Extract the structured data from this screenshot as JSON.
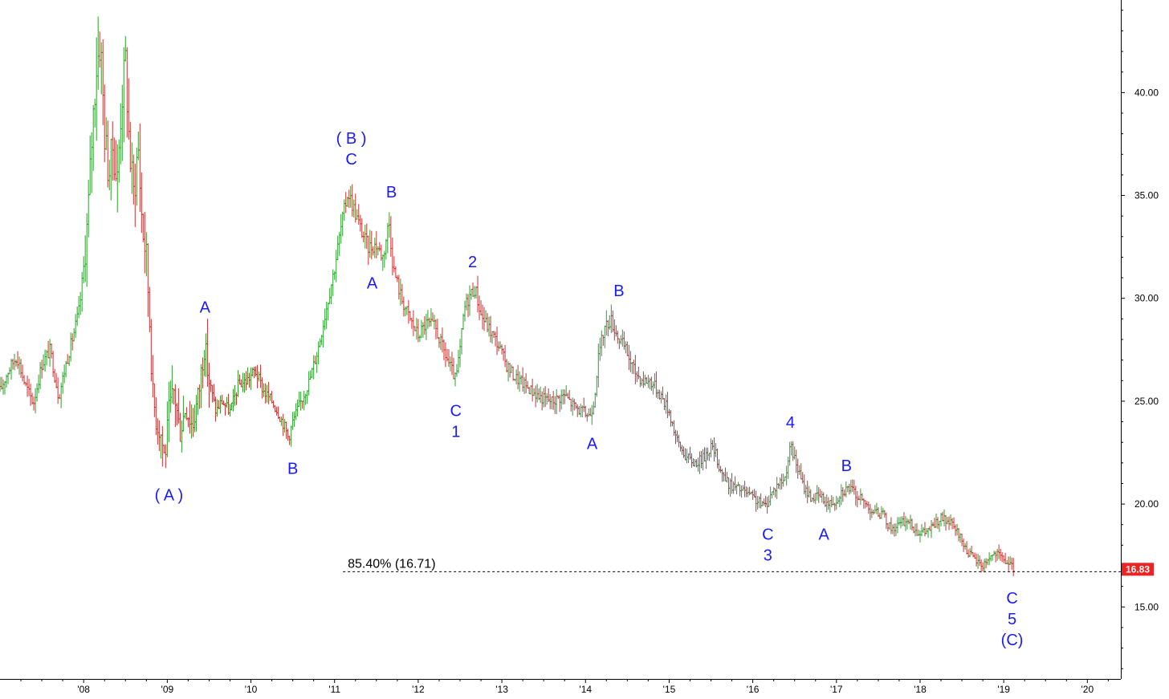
{
  "chart_data": {
    "type": "bar",
    "subtype": "ohlc-price-bars",
    "title": "",
    "xlabel": "",
    "ylabel": "",
    "ylim": [
      11.5,
      44.5
    ],
    "xlim": [
      2007.0,
      2020.4
    ],
    "y_ticks": [
      15,
      20,
      25,
      30,
      35,
      40
    ],
    "y_tick_labels": [
      "15.00",
      "20.00",
      "25.00",
      "30.00",
      "35.00",
      "40.00"
    ],
    "x_ticks": [
      2008,
      2009,
      2010,
      2011,
      2012,
      2013,
      2014,
      2015,
      2016,
      2017,
      2018,
      2019,
      2020
    ],
    "x_tick_labels": [
      "'08",
      "'09",
      "'10",
      "'11",
      "'12",
      "'13",
      "'14",
      "'15",
      "'16",
      "'17",
      "'18",
      "'19",
      "'20"
    ],
    "grid": false,
    "colors": {
      "up": "#2e9e2e",
      "down": "#c83232",
      "wave_label": "#1a1aff",
      "price_tag": "#ee2222",
      "axis": "#000000"
    },
    "price_path": [
      [
        2007.0,
        25.5
      ],
      [
        2007.1,
        26.5
      ],
      [
        2007.2,
        27.2
      ],
      [
        2007.3,
        25.8
      ],
      [
        2007.4,
        24.9
      ],
      [
        2007.5,
        26.8
      ],
      [
        2007.6,
        27.5
      ],
      [
        2007.7,
        25.2
      ],
      [
        2007.8,
        27.0
      ],
      [
        2007.9,
        28.6
      ],
      [
        2007.95,
        29.5
      ],
      [
        2008.0,
        31.5
      ],
      [
        2008.05,
        34.0
      ],
      [
        2008.1,
        38.0
      ],
      [
        2008.15,
        41.2
      ],
      [
        2008.2,
        42.6
      ],
      [
        2008.25,
        38.0
      ],
      [
        2008.3,
        36.0
      ],
      [
        2008.35,
        37.5
      ],
      [
        2008.4,
        35.5
      ],
      [
        2008.45,
        39.5
      ],
      [
        2008.5,
        41.5
      ],
      [
        2008.55,
        37.0
      ],
      [
        2008.6,
        35.0
      ],
      [
        2008.65,
        37.5
      ],
      [
        2008.7,
        33.5
      ],
      [
        2008.75,
        32.0
      ],
      [
        2008.8,
        28.0
      ],
      [
        2008.82,
        25.5
      ],
      [
        2008.87,
        24.0
      ],
      [
        2008.92,
        23.5
      ],
      [
        2008.97,
        22.2
      ],
      [
        2009.02,
        24.5
      ],
      [
        2009.08,
        25.5
      ],
      [
        2009.15,
        23.5
      ],
      [
        2009.22,
        24.8
      ],
      [
        2009.3,
        23.8
      ],
      [
        2009.38,
        25.5
      ],
      [
        2009.44,
        27.8
      ],
      [
        2009.5,
        26.0
      ],
      [
        2009.58,
        24.5
      ],
      [
        2009.65,
        25.0
      ],
      [
        2009.75,
        24.5
      ],
      [
        2009.85,
        25.8
      ],
      [
        2009.95,
        26.0
      ],
      [
        2010.05,
        26.5
      ],
      [
        2010.15,
        25.5
      ],
      [
        2010.25,
        25.0
      ],
      [
        2010.32,
        24.5
      ],
      [
        2010.4,
        23.8
      ],
      [
        2010.45,
        23.2
      ],
      [
        2010.5,
        24.0
      ],
      [
        2010.6,
        25.0
      ],
      [
        2010.7,
        26.0
      ],
      [
        2010.8,
        27.5
      ],
      [
        2010.9,
        29.5
      ],
      [
        2011.0,
        31.5
      ],
      [
        2011.08,
        33.5
      ],
      [
        2011.16,
        35.2
      ],
      [
        2011.22,
        34.5
      ],
      [
        2011.3,
        33.5
      ],
      [
        2011.4,
        32.5
      ],
      [
        2011.5,
        32.6
      ],
      [
        2011.58,
        32.0
      ],
      [
        2011.62,
        33.0
      ],
      [
        2011.65,
        33.8
      ],
      [
        2011.7,
        31.5
      ],
      [
        2011.8,
        30.0
      ],
      [
        2011.9,
        29.0
      ],
      [
        2012.0,
        28.2
      ],
      [
        2012.1,
        28.8
      ],
      [
        2012.2,
        28.6
      ],
      [
        2012.3,
        27.5
      ],
      [
        2012.4,
        26.5
      ],
      [
        2012.45,
        26.0
      ],
      [
        2012.5,
        27.5
      ],
      [
        2012.55,
        29.5
      ],
      [
        2012.62,
        30.2
      ],
      [
        2012.68,
        30.5
      ],
      [
        2012.75,
        29.2
      ],
      [
        2012.85,
        28.5
      ],
      [
        2012.95,
        27.8
      ],
      [
        2013.05,
        26.8
      ],
      [
        2013.15,
        26.2
      ],
      [
        2013.3,
        25.7
      ],
      [
        2013.45,
        25.2
      ],
      [
        2013.6,
        25.0
      ],
      [
        2013.75,
        25.3
      ],
      [
        2013.85,
        24.8
      ],
      [
        2013.95,
        24.5
      ],
      [
        2014.05,
        24.3
      ],
      [
        2014.1,
        25.0
      ],
      [
        2014.15,
        27.0
      ],
      [
        2014.22,
        28.5
      ],
      [
        2014.3,
        29.0
      ],
      [
        2014.38,
        28.2
      ],
      [
        2014.48,
        27.5
      ],
      [
        2014.58,
        26.5
      ],
      [
        2014.68,
        26.0
      ],
      [
        2014.78,
        26.0
      ],
      [
        2014.9,
        25.3
      ],
      [
        2015.0,
        24.5
      ],
      [
        2015.1,
        23.0
      ],
      [
        2015.2,
        22.3
      ],
      [
        2015.3,
        22.0
      ],
      [
        2015.4,
        22.2
      ],
      [
        2015.5,
        22.8
      ],
      [
        2015.55,
        22.5
      ],
      [
        2015.6,
        21.8
      ],
      [
        2015.7,
        21.0
      ],
      [
        2015.8,
        20.8
      ],
      [
        2015.9,
        20.6
      ],
      [
        2016.0,
        20.3
      ],
      [
        2016.1,
        20.0
      ],
      [
        2016.15,
        19.9
      ],
      [
        2016.22,
        20.5
      ],
      [
        2016.3,
        21.0
      ],
      [
        2016.38,
        21.2
      ],
      [
        2016.45,
        22.8
      ],
      [
        2016.5,
        22.2
      ],
      [
        2016.6,
        20.9
      ],
      [
        2016.7,
        20.3
      ],
      [
        2016.8,
        20.4
      ],
      [
        2016.9,
        20.0
      ],
      [
        2017.0,
        20.2
      ],
      [
        2017.05,
        20.6
      ],
      [
        2017.15,
        20.8
      ],
      [
        2017.25,
        20.4
      ],
      [
        2017.35,
        20.0
      ],
      [
        2017.45,
        19.6
      ],
      [
        2017.55,
        19.5
      ],
      [
        2017.65,
        18.8
      ],
      [
        2017.75,
        19.0
      ],
      [
        2017.85,
        19.2
      ],
      [
        2017.95,
        18.7
      ],
      [
        2018.05,
        18.6
      ],
      [
        2018.15,
        18.9
      ],
      [
        2018.25,
        19.3
      ],
      [
        2018.35,
        19.1
      ],
      [
        2018.45,
        18.6
      ],
      [
        2018.55,
        17.8
      ],
      [
        2018.65,
        17.3
      ],
      [
        2018.75,
        17.0
      ],
      [
        2018.82,
        17.4
      ],
      [
        2018.9,
        17.6
      ],
      [
        2019.0,
        17.3
      ],
      [
        2019.08,
        17.0
      ],
      [
        2019.12,
        16.83
      ]
    ],
    "annotations": [
      {
        "text": "( A )",
        "x": 2009.02,
        "y": 21.5,
        "pos": "below"
      },
      {
        "text": "A",
        "x": 2009.45,
        "y": 28.6,
        "pos": "above"
      },
      {
        "text": "B",
        "x": 2010.5,
        "y": 22.8,
        "pos": "below"
      },
      {
        "text": "( B )",
        "x": 2011.2,
        "y": 35.8,
        "pos": "above-2"
      },
      {
        "text": "C",
        "x": 2011.2,
        "y": 35.8,
        "pos": "above"
      },
      {
        "text": "A",
        "x": 2011.45,
        "y": 31.8,
        "pos": "below"
      },
      {
        "text": "B",
        "x": 2011.68,
        "y": 34.2,
        "pos": "above"
      },
      {
        "text": "C",
        "x": 2012.45,
        "y": 25.6,
        "pos": "below"
      },
      {
        "text": "1",
        "x": 2012.45,
        "y": 25.6,
        "pos": "below-2"
      },
      {
        "text": "2",
        "x": 2012.65,
        "y": 30.8,
        "pos": "above"
      },
      {
        "text": "A",
        "x": 2014.08,
        "y": 24.0,
        "pos": "below"
      },
      {
        "text": "B",
        "x": 2014.4,
        "y": 29.4,
        "pos": "above"
      },
      {
        "text": "4",
        "x": 2016.45,
        "y": 23.0,
        "pos": "above"
      },
      {
        "text": "C",
        "x": 2016.18,
        "y": 19.6,
        "pos": "below"
      },
      {
        "text": "3",
        "x": 2016.18,
        "y": 19.6,
        "pos": "below-2"
      },
      {
        "text": "B",
        "x": 2017.12,
        "y": 20.9,
        "pos": "above"
      },
      {
        "text": "A",
        "x": 2016.85,
        "y": 19.6,
        "pos": "below"
      },
      {
        "text": "C",
        "x": 2019.1,
        "y": 16.5,
        "pos": "below"
      },
      {
        "text": "5",
        "x": 2019.1,
        "y": 16.5,
        "pos": "below-2"
      },
      {
        "text": "(C)",
        "x": 2019.1,
        "y": 16.5,
        "pos": "below-3"
      }
    ],
    "reference_line": {
      "label": "85.40% (16.71)",
      "value": 16.71,
      "x_start": 2011.1,
      "style": "dashed"
    },
    "last_price": "16.83",
    "last_price_value": 16.83
  }
}
